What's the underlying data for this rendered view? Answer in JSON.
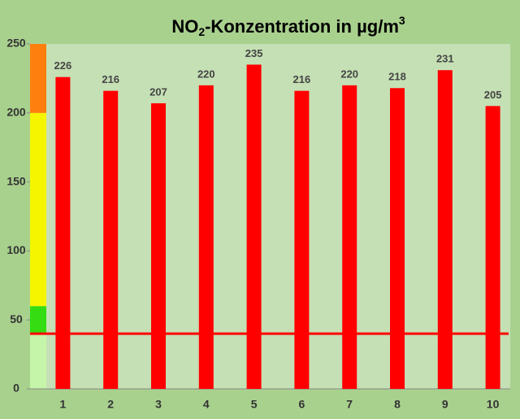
{
  "chart_data": {
    "type": "bar",
    "title": [
      "NO",
      "2",
      "-Konzentration  in µg/m",
      "3"
    ],
    "categories": [
      "1",
      "2",
      "3",
      "4",
      "5",
      "6",
      "7",
      "8",
      "9",
      "10"
    ],
    "values": [
      226,
      216,
      207,
      220,
      235,
      216,
      220,
      218,
      231,
      205
    ],
    "color": "#ff0000",
    "ylim": [
      0,
      250
    ],
    "yticks": [
      0,
      50,
      100,
      150,
      200,
      250
    ],
    "reference_line": {
      "value": 40,
      "color": "#ff0000"
    },
    "bands": [
      {
        "from": 0,
        "to": 40,
        "color": "#c5f5a8"
      },
      {
        "from": 40,
        "to": 60,
        "color": "#33dd11"
      },
      {
        "from": 60,
        "to": 200,
        "color": "#f5f500"
      },
      {
        "from": 200,
        "to": 250,
        "color": "#ff7f0e"
      }
    ]
  }
}
